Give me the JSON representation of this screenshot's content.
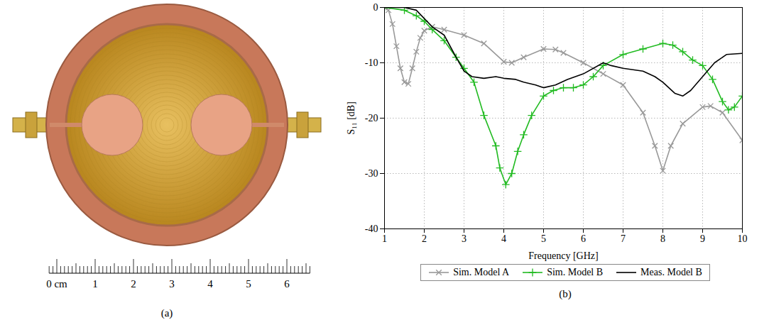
{
  "chart_data": {
    "type": "line",
    "xlabel": "Frequency [GHz]",
    "ylabel": "S₁₁ [dB]",
    "caption": "(b)",
    "xlim": [
      1,
      10
    ],
    "xticks": [
      1,
      2,
      3,
      4,
      5,
      6,
      7,
      8,
      9,
      10
    ],
    "ylim": [
      -40,
      0
    ],
    "yticks": [
      -40,
      -30,
      -20,
      -10,
      0
    ],
    "grid": true,
    "legend": "bottom",
    "series": [
      {
        "name": "Sim. Model A",
        "color": "#999999",
        "marker": "times",
        "line_style": "solid",
        "x": [
          1.0,
          1.1,
          1.2,
          1.3,
          1.4,
          1.5,
          1.6,
          1.7,
          1.8,
          1.9,
          2.0,
          2.2,
          2.5,
          3.0,
          3.5,
          4.0,
          4.2,
          4.5,
          5.0,
          5.3,
          5.5,
          6.0,
          6.5,
          7.0,
          7.5,
          7.8,
          8.0,
          8.2,
          8.5,
          9.0,
          9.2,
          9.5,
          10.0
        ],
        "values": [
          0,
          -0.5,
          -3,
          -7,
          -11,
          -13.5,
          -13.8,
          -11,
          -8,
          -5.5,
          -4.2,
          -3.5,
          -4,
          -5,
          -6.5,
          -9.8,
          -10,
          -9,
          -7.5,
          -7.6,
          -8.2,
          -10,
          -12,
          -14,
          -19,
          -25,
          -29.5,
          -25,
          -21,
          -18,
          -17.8,
          -19,
          -24
        ]
      },
      {
        "name": "Sim. Model B",
        "color": "#22bb22",
        "marker": "plus",
        "line_style": "solid",
        "x": [
          1.0,
          1.5,
          1.8,
          2.0,
          2.2,
          2.5,
          2.8,
          3.0,
          3.25,
          3.5,
          3.8,
          3.9,
          4.05,
          4.2,
          4.35,
          4.5,
          4.7,
          5.0,
          5.25,
          5.5,
          5.75,
          6.0,
          6.25,
          6.5,
          7.0,
          7.5,
          8.0,
          8.25,
          8.5,
          8.75,
          9.0,
          9.25,
          9.5,
          9.65,
          9.8,
          10.0
        ],
        "values": [
          0,
          -0.5,
          -1.5,
          -2.5,
          -4,
          -6,
          -9,
          -11,
          -13.5,
          -19.5,
          -25,
          -29,
          -32,
          -30,
          -26,
          -23,
          -19.5,
          -16,
          -15,
          -14.5,
          -14.5,
          -14,
          -12.5,
          -10.5,
          -8.5,
          -7.5,
          -6.5,
          -6.8,
          -8,
          -9.5,
          -10.5,
          -13,
          -17,
          -18.5,
          -18,
          -16
        ]
      },
      {
        "name": "Meas. Model B",
        "color": "#000000",
        "line_style": "solid",
        "x": [
          1.0,
          1.5,
          1.8,
          2.0,
          2.2,
          2.5,
          2.8,
          3.0,
          3.2,
          3.5,
          3.8,
          4.0,
          4.3,
          4.5,
          4.8,
          5.0,
          5.3,
          5.6,
          6.0,
          6.5,
          6.7,
          7.0,
          7.5,
          7.8,
          8.0,
          8.3,
          8.5,
          8.7,
          9.0,
          9.3,
          9.6,
          10.0
        ],
        "values": [
          0,
          0,
          -0.5,
          -2,
          -3.5,
          -5,
          -9,
          -11.5,
          -12.5,
          -12.8,
          -12.5,
          -12.8,
          -13,
          -13.5,
          -14,
          -14.5,
          -14,
          -13,
          -12,
          -10,
          -10.5,
          -11,
          -11.5,
          -12.5,
          -13.5,
          -15.5,
          -16,
          -15,
          -12.5,
          -10,
          -8.5,
          -8.3
        ]
      }
    ]
  },
  "photo": {
    "caption": "(a)",
    "ruler_ticks": [
      {
        "value": 0,
        "label": "0 cm"
      },
      1,
      2,
      3,
      4,
      5,
      6
    ]
  }
}
